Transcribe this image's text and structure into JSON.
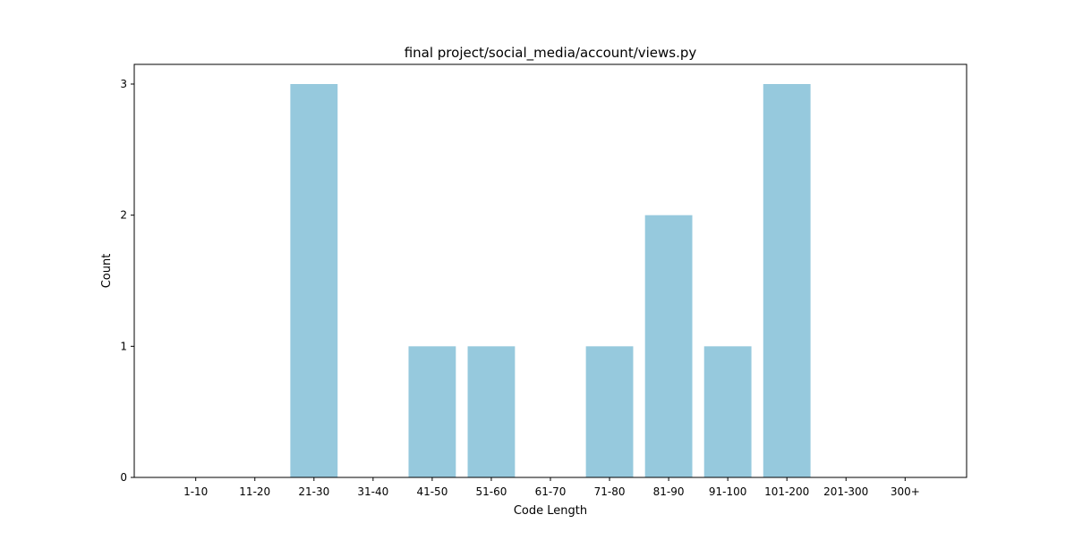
{
  "chart_data": {
    "type": "bar",
    "title": "final project/social_media/account/views.py",
    "xlabel": "Code Length",
    "ylabel": "Count",
    "categories": [
      "1-10",
      "11-20",
      "21-30",
      "31-40",
      "41-50",
      "51-60",
      "61-70",
      "71-80",
      "81-90",
      "91-100",
      "101-200",
      "201-300",
      "300+"
    ],
    "values": [
      0,
      0,
      3,
      0,
      1,
      1,
      0,
      1,
      2,
      1,
      3,
      0,
      0
    ],
    "ylim": [
      0,
      3.15
    ],
    "yticks": [
      0,
      1,
      2,
      3
    ],
    "grid": false,
    "bar_color": "#96c9dd"
  }
}
